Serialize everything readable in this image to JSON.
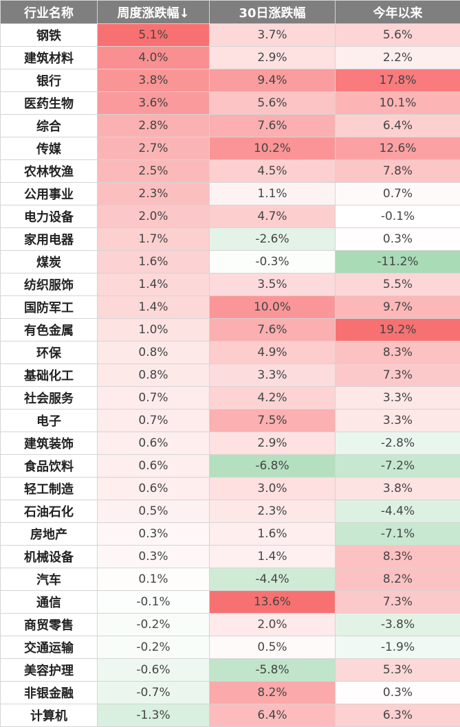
{
  "chart_data": {
    "type": "table",
    "columns": [
      "行业名称",
      "周度涨跌幅↓",
      "30日涨跌幅",
      "今年以来"
    ],
    "rows": [
      [
        "钢铁",
        "5.1%",
        "3.7%",
        "5.6%"
      ],
      [
        "建筑材料",
        "4.0%",
        "2.9%",
        "2.2%"
      ],
      [
        "银行",
        "3.8%",
        "9.4%",
        "17.8%"
      ],
      [
        "医药生物",
        "3.6%",
        "5.6%",
        "10.1%"
      ],
      [
        "综合",
        "2.8%",
        "7.6%",
        "6.4%"
      ],
      [
        "传媒",
        "2.7%",
        "10.2%",
        "12.6%"
      ],
      [
        "农林牧渔",
        "2.5%",
        "4.5%",
        "7.8%"
      ],
      [
        "公用事业",
        "2.3%",
        "1.1%",
        "0.7%"
      ],
      [
        "电力设备",
        "2.0%",
        "4.7%",
        "-0.1%"
      ],
      [
        "家用电器",
        "1.7%",
        "-2.6%",
        "0.3%"
      ],
      [
        "煤炭",
        "1.6%",
        "-0.3%",
        "-11.2%"
      ],
      [
        "纺织服饰",
        "1.4%",
        "3.5%",
        "5.5%"
      ],
      [
        "国防军工",
        "1.4%",
        "10.0%",
        "9.7%"
      ],
      [
        "有色金属",
        "1.0%",
        "7.6%",
        "19.2%"
      ],
      [
        "环保",
        "0.8%",
        "4.9%",
        "8.3%"
      ],
      [
        "基础化工",
        "0.8%",
        "3.3%",
        "7.3%"
      ],
      [
        "社会服务",
        "0.7%",
        "4.2%",
        "3.3%"
      ],
      [
        "电子",
        "0.7%",
        "7.5%",
        "3.3%"
      ],
      [
        "建筑装饰",
        "0.6%",
        "2.9%",
        "-2.8%"
      ],
      [
        "食品饮料",
        "0.6%",
        "-6.8%",
        "-7.2%"
      ],
      [
        "轻工制造",
        "0.6%",
        "3.0%",
        "3.8%"
      ],
      [
        "石油石化",
        "0.5%",
        "2.3%",
        "-4.4%"
      ],
      [
        "房地产",
        "0.3%",
        "1.6%",
        "-7.1%"
      ],
      [
        "机械设备",
        "0.3%",
        "1.4%",
        "8.3%"
      ],
      [
        "汽车",
        "0.1%",
        "-4.4%",
        "8.2%"
      ],
      [
        "通信",
        "-0.1%",
        "13.6%",
        "7.3%"
      ],
      [
        "商贸零售",
        "-0.2%",
        "2.0%",
        "-3.8%"
      ],
      [
        "交通运输",
        "-0.2%",
        "0.5%",
        "-1.9%"
      ],
      [
        "美容护理",
        "-0.6%",
        "-5.8%",
        "5.3%"
      ],
      [
        "非银金融",
        "-0.7%",
        "8.2%",
        "0.3%"
      ],
      [
        "计算机",
        "-1.3%",
        "6.4%",
        "6.3%"
      ]
    ],
    "positive_color": "#f8696b",
    "negative_color": "#63be7b",
    "neutral_color": "#ffffff",
    "header_background": "#7f7f7f",
    "header_text_color": "#ffffff"
  }
}
